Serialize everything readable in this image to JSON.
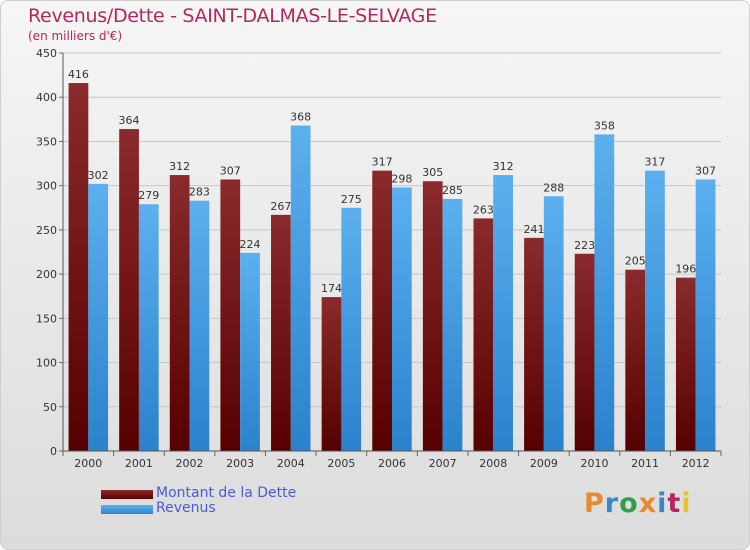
{
  "title": "Revenus/Dette - SAINT-DALMAS-LE-SELVAGE",
  "subtitle": "(en milliers d'€)",
  "logo": "Proxiti",
  "colors": {
    "dette": "#7a1e21",
    "revenus": "#3d9be3",
    "title": "#b5265d",
    "legend_text": "#4a5bd6"
  },
  "chart_data": {
    "type": "bar",
    "categories": [
      "2000",
      "2001",
      "2002",
      "2003",
      "2004",
      "2005",
      "2006",
      "2007",
      "2008",
      "2009",
      "2010",
      "2011",
      "2012"
    ],
    "series": [
      {
        "name": "Montant de la Dette",
        "values": [
          416,
          364,
          312,
          307,
          267,
          174,
          317,
          305,
          263,
          241,
          223,
          205,
          196
        ]
      },
      {
        "name": "Revenus",
        "values": [
          302,
          279,
          283,
          224,
          368,
          275,
          298,
          285,
          312,
          288,
          358,
          317,
          307
        ]
      }
    ],
    "yticks": [
      0,
      50,
      100,
      150,
      200,
      250,
      300,
      350,
      400,
      450
    ],
    "ylim": [
      0,
      450
    ],
    "grid": true,
    "legend": "bottom-left"
  }
}
